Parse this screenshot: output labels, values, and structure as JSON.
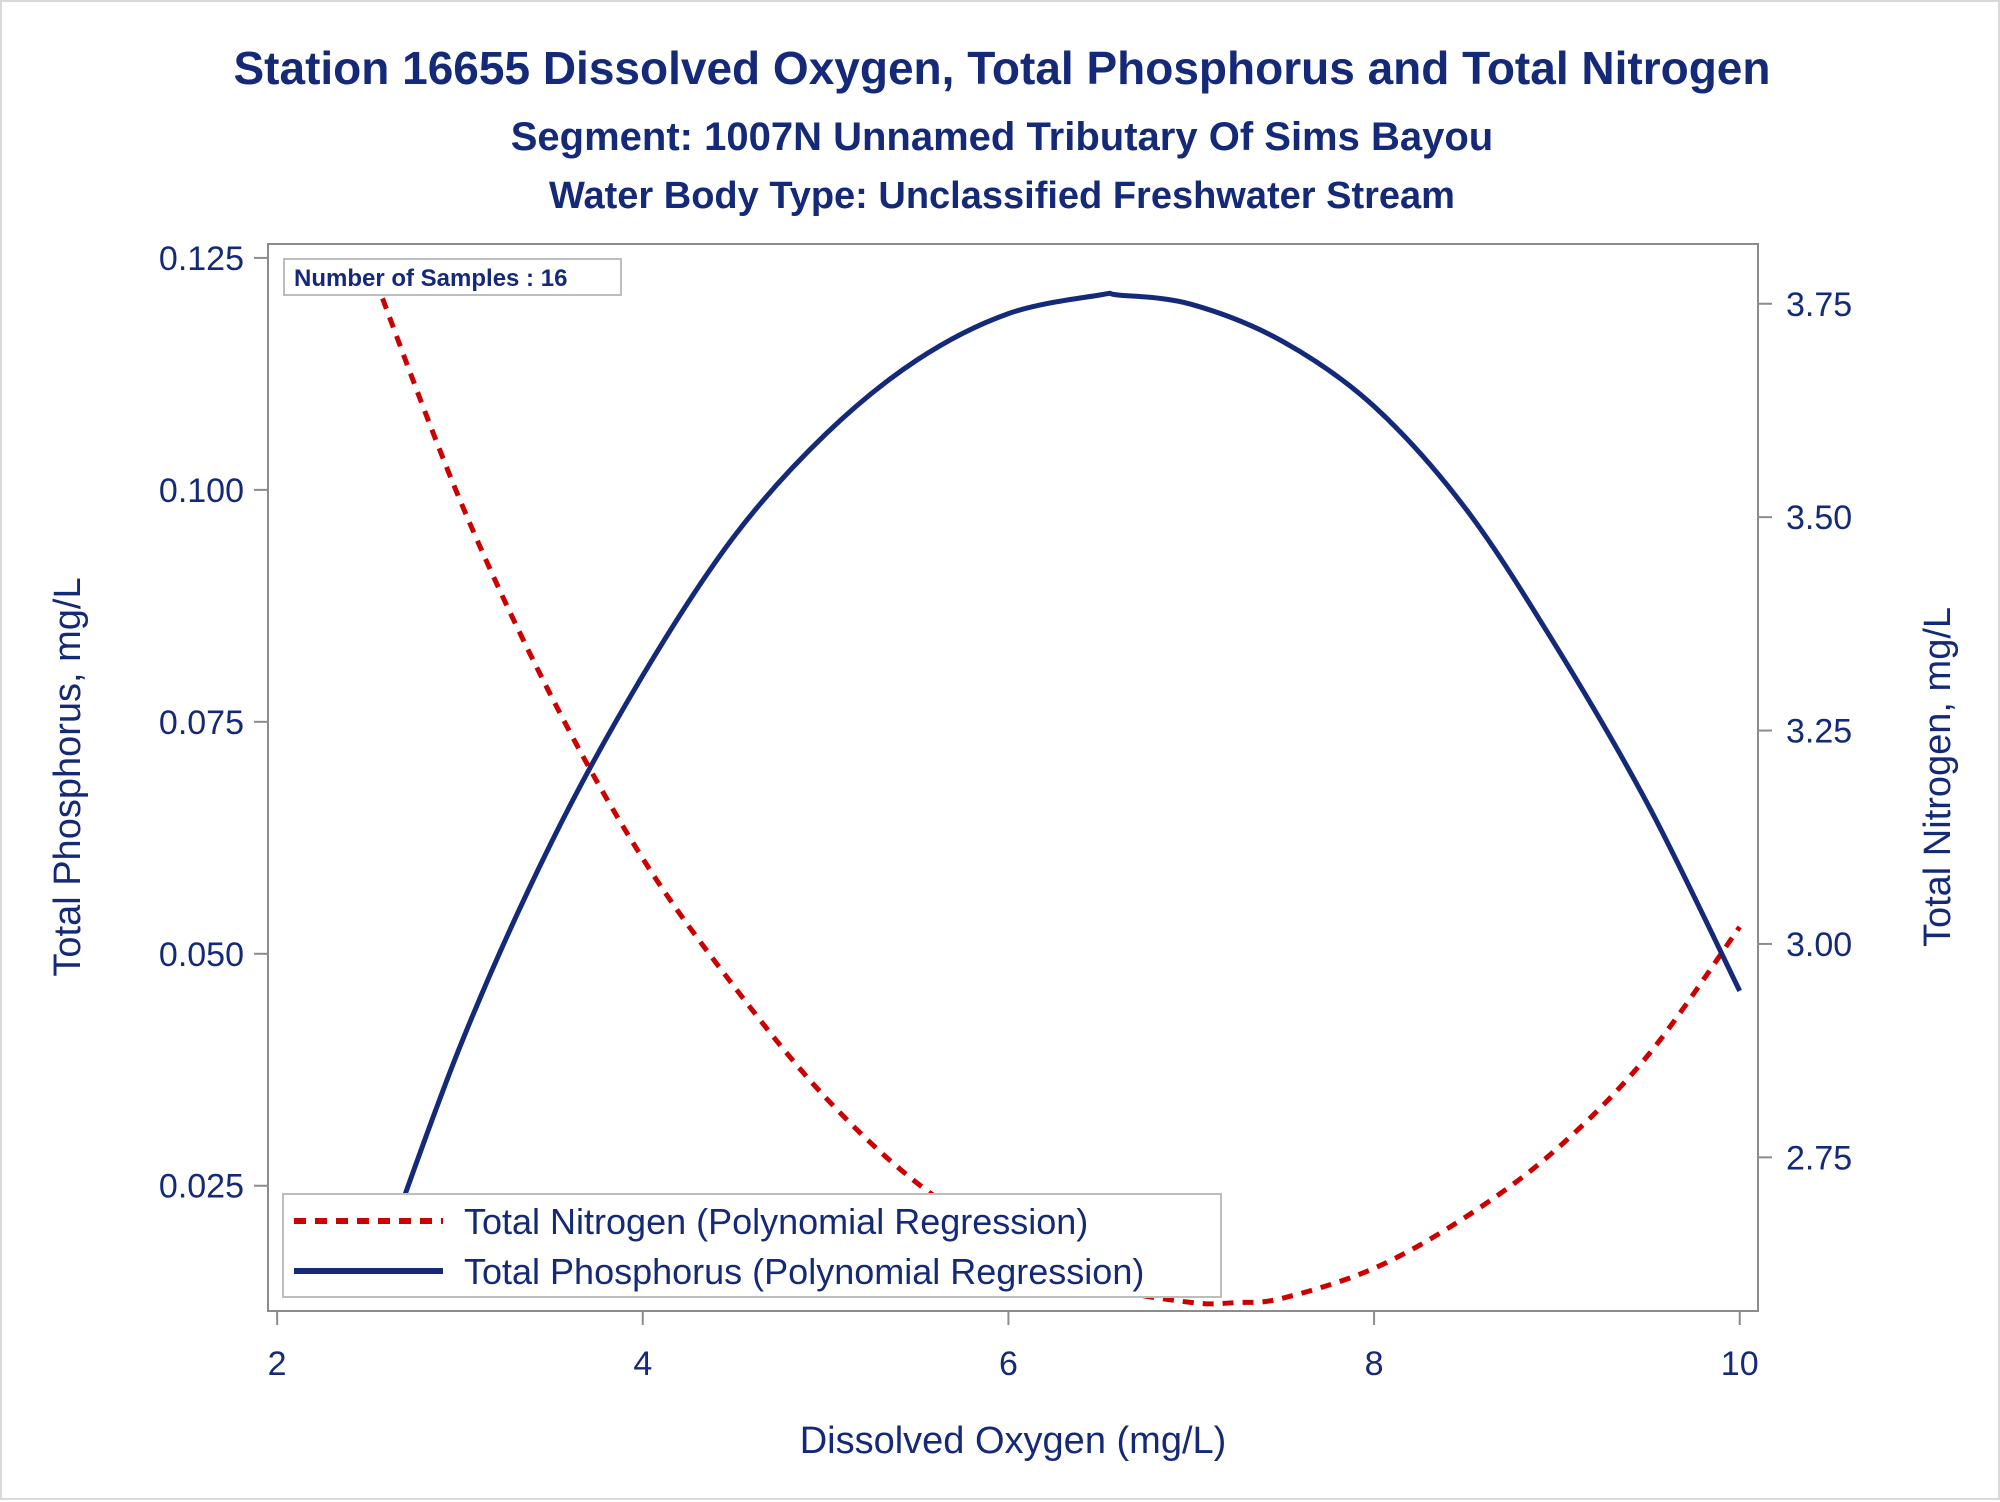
{
  "colors": {
    "text": "#142a78",
    "axis": "#8c8c8c",
    "phosphorus": "#142a78",
    "nitrogen": "#cc0000"
  },
  "chart_data": {
    "type": "line",
    "title": "Station 16655  Dissolved Oxygen, Total Phosphorus and Total Nitrogen",
    "subtitle": "Segment: 1007N  Unnamed Tributary Of Sims Bayou",
    "subtitle2": "Water Body Type: Unclassified Freshwater Stream",
    "xlabel": "Dissolved Oxygen (mg/L)",
    "ylabel_left": "Total Phosphorus, mg/L",
    "ylabel_right": "Total Nitrogen, mg/L",
    "xlim": [
      1.95,
      10.1
    ],
    "ylim_left": [
      0.0115,
      0.1265
    ],
    "ylim_right": [
      2.57,
      3.82
    ],
    "x_ticks": [
      "2",
      "4",
      "6",
      "8",
      "10"
    ],
    "y_left_ticks": [
      "0.025",
      "0.050",
      "0.075",
      "0.100",
      "0.125"
    ],
    "y_right_ticks": [
      "2.75",
      "3.00",
      "3.25",
      "3.50",
      "3.75"
    ],
    "grid": false,
    "annotation": "Number of Samples : 16",
    "legend_position": "bottom-left",
    "series": [
      {
        "name": "Total Nitrogen (Polynomial Regression)",
        "axis": "right",
        "style": "dashed",
        "x": [
          2.5,
          3.0,
          3.5,
          4.0,
          4.5,
          5.0,
          5.5,
          6.0,
          6.5,
          7.0,
          7.25,
          7.5,
          8.0,
          8.5,
          9.0,
          9.5,
          10.0
        ],
        "y": [
          3.8,
          3.52,
          3.29,
          3.1,
          2.95,
          2.82,
          2.72,
          2.65,
          2.6,
          2.58,
          2.58,
          2.585,
          2.62,
          2.68,
          2.76,
          2.87,
          3.02
        ]
      },
      {
        "name": "Total Phosphorus (Polynomial Regression)",
        "axis": "left",
        "style": "solid",
        "x": [
          2.5,
          3.0,
          3.5,
          4.0,
          4.5,
          5.0,
          5.5,
          6.0,
          6.5,
          6.6,
          7.0,
          7.5,
          8.0,
          8.5,
          9.0,
          9.5,
          10.0
        ],
        "y": [
          0.013,
          0.04,
          0.062,
          0.08,
          0.095,
          0.106,
          0.114,
          0.119,
          0.121,
          0.121,
          0.12,
          0.116,
          0.109,
          0.098,
          0.083,
          0.066,
          0.046
        ]
      }
    ]
  }
}
